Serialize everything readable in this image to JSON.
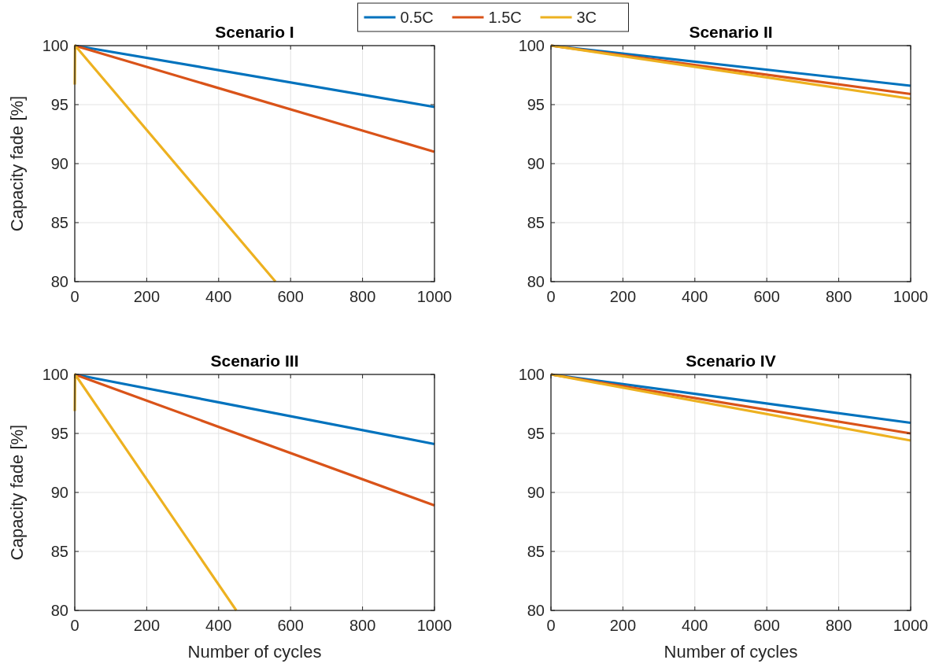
{
  "chart_data": [
    {
      "type": "line",
      "title": "Scenario I",
      "ylabel": "Capacity fade [%]",
      "xlim": [
        0,
        1000
      ],
      "xticks": [
        0,
        200,
        400,
        600,
        800,
        1000
      ],
      "ylim": [
        80,
        100
      ],
      "yticks": [
        80,
        85,
        90,
        95,
        100
      ],
      "grid": true,
      "legend": "top",
      "line_style": "solid",
      "marker": "none",
      "series": [
        {
          "name": "0.5C",
          "color": "#0072bd",
          "x": [
            0,
            1000
          ],
          "values": [
            100,
            94.8
          ]
        },
        {
          "name": "1.5C",
          "color": "#d95319",
          "x": [
            0,
            1000
          ],
          "values": [
            100,
            91.0
          ]
        },
        {
          "name": "3C",
          "color": "#edb120",
          "x": [
            0,
            1,
            558
          ],
          "values": [
            96.7,
            100,
            80
          ]
        }
      ]
    },
    {
      "type": "line",
      "title": "Scenario II",
      "xlim": [
        0,
        1000
      ],
      "xticks": [
        0,
        200,
        400,
        600,
        800,
        1000
      ],
      "ylim": [
        80,
        100
      ],
      "yticks": [
        80,
        85,
        90,
        95,
        100
      ],
      "grid": true,
      "line_style": "solid",
      "marker": "none",
      "series": [
        {
          "color": "#0072bd",
          "x": [
            0,
            1000
          ],
          "values": [
            100,
            96.6
          ]
        },
        {
          "color": "#d95319",
          "x": [
            0,
            1000
          ],
          "values": [
            100,
            95.9
          ]
        },
        {
          "color": "#edb120",
          "x": [
            0,
            1000
          ],
          "values": [
            100,
            95.5
          ]
        }
      ]
    },
    {
      "type": "line",
      "title": "Scenario III",
      "xlabel": "Number of cycles",
      "ylabel": "Capacity fade [%]",
      "xlim": [
        0,
        1000
      ],
      "xticks": [
        0,
        200,
        400,
        600,
        800,
        1000
      ],
      "ylim": [
        80,
        100
      ],
      "yticks": [
        80,
        85,
        90,
        95,
        100
      ],
      "grid": true,
      "line_style": "solid",
      "marker": "none",
      "series": [
        {
          "color": "#0072bd",
          "x": [
            0,
            1000
          ],
          "values": [
            100,
            94.1
          ]
        },
        {
          "color": "#d95319",
          "x": [
            0,
            1000
          ],
          "values": [
            100,
            88.9
          ]
        },
        {
          "color": "#edb120",
          "x": [
            0,
            1,
            449
          ],
          "values": [
            96.9,
            100,
            80
          ]
        }
      ]
    },
    {
      "type": "line",
      "title": "Scenario IV",
      "xlabel": "Number of cycles",
      "xlim": [
        0,
        1000
      ],
      "xticks": [
        0,
        200,
        400,
        600,
        800,
        1000
      ],
      "ylim": [
        80,
        100
      ],
      "yticks": [
        80,
        85,
        90,
        95,
        100
      ],
      "grid": true,
      "line_style": "solid",
      "marker": "none",
      "series": [
        {
          "color": "#0072bd",
          "x": [
            0,
            1000
          ],
          "values": [
            100,
            95.9
          ]
        },
        {
          "color": "#d95319",
          "x": [
            0,
            1000
          ],
          "values": [
            100,
            95.0
          ]
        },
        {
          "color": "#edb120",
          "x": [
            0,
            1000
          ],
          "values": [
            100,
            94.4
          ]
        }
      ]
    }
  ]
}
